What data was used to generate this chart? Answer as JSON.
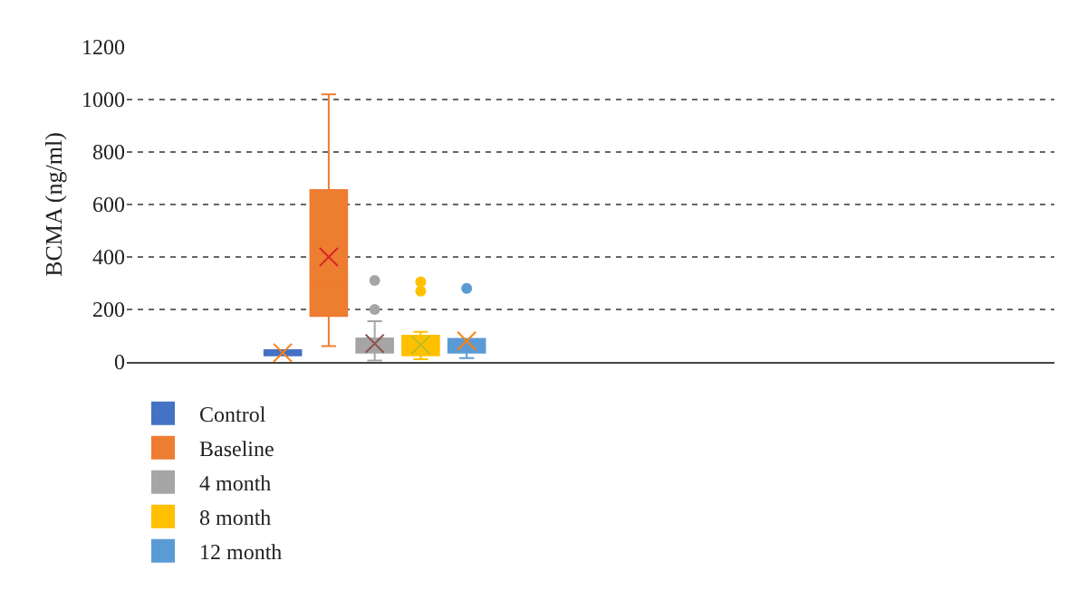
{
  "chart_data": {
    "type": "box",
    "ylabel": "BCMA (ng/ml)",
    "categories": [
      null
    ],
    "ylim": [
      0,
      1200
    ],
    "yticks": [
      0,
      200,
      400,
      600,
      800,
      1000,
      1200
    ],
    "grid": "y",
    "legend": "bottom",
    "series": [
      {
        "name": "Control",
        "color": "#4472c4",
        "boxes": [
          {
            "low": 25,
            "q1": 25,
            "median": 35,
            "q3": 45,
            "high": 45,
            "mean": 35
          }
        ]
      },
      {
        "name": "Baseline",
        "color": "#ed7d31",
        "boxes": [
          {
            "low": 60,
            "q1": 175,
            "median": 295,
            "q3": 655,
            "high": 1020,
            "mean": 400
          }
        ]
      },
      {
        "name": "4 month",
        "color": "#a5a5a5",
        "boxes": [
          {
            "low": 5,
            "q1": 35,
            "median": 55,
            "q3": 90,
            "high": 155,
            "mean": 70,
            "outliers": [
              200,
              310
            ]
          }
        ]
      },
      {
        "name": "8 month",
        "color": "#ffc000",
        "boxes": [
          {
            "low": 10,
            "q1": 25,
            "median": 40,
            "q3": 100,
            "high": 115,
            "mean": 65,
            "outliers": [
              270,
              305
            ]
          }
        ]
      },
      {
        "name": "12 month",
        "color": "#5b9bd5",
        "boxes": [
          {
            "low": 15,
            "q1": 35,
            "median": 55,
            "q3": 88,
            "high": 88,
            "mean": 80,
            "outliers": [
              280
            ]
          }
        ]
      }
    ]
  }
}
